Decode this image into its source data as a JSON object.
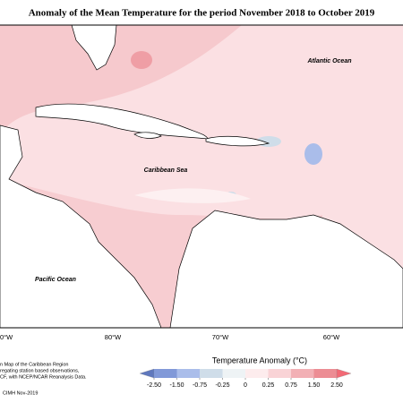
{
  "map": {
    "title": "Anomaly of the Mean Temperature for the period November 2018 to October 2019",
    "ocean_labels": [
      "Atlantic Ocean",
      "Caribbean Sea",
      "Pacific Ocean"
    ],
    "longitude_labels": [
      "0°W",
      "80°W",
      "70°W",
      "60°W"
    ],
    "footnote": [
      "n Map of the Caribbean Region",
      "regating station based observations,",
      "CF, with NCEP/NCAR Reanalysis Data."
    ],
    "credit": "CIMH Nov-2019",
    "colorbar": {
      "title": "Temperature Anomaly (°C)",
      "ticks": [
        {
          "value": -2.5,
          "label": "-2.50"
        },
        {
          "value": -1.5,
          "label": "-1.50"
        },
        {
          "value": -0.75,
          "label": "-0.75"
        },
        {
          "value": -0.25,
          "label": "-0.25"
        },
        0,
        {
          "value": 0.25,
          "label": "0.25"
        },
        {
          "value": 0.75,
          "label": "0.75"
        },
        {
          "value": 1.5,
          "label": "1.50"
        },
        {
          "value": 2.5,
          "label": "2.50"
        }
      ],
      "colors": [
        "#5f78bd",
        "#8199d8",
        "#aabdea",
        "#cfdde9",
        "#eef3f5",
        "#fdeced",
        "#f9d3d6",
        "#f2b0b5",
        "#ec8d94",
        "#f26a76"
      ]
    }
  }
}
